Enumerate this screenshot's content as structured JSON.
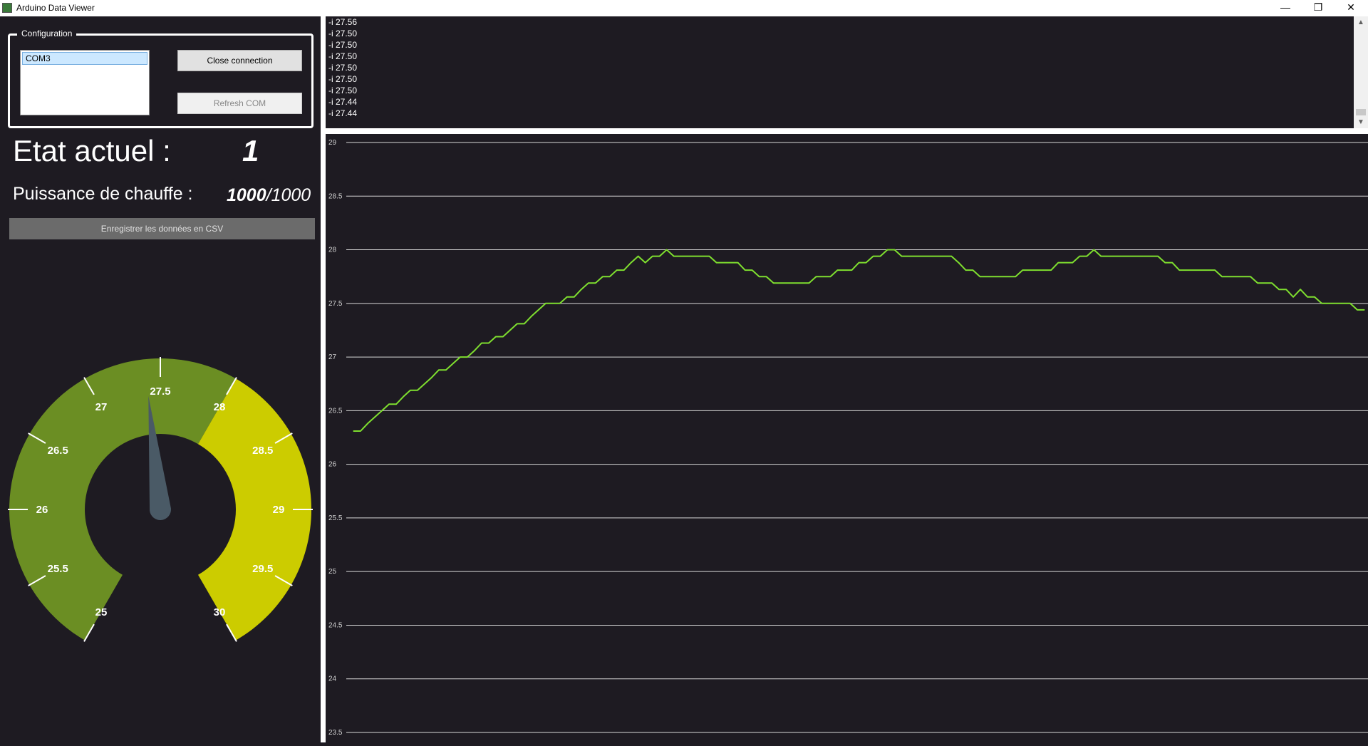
{
  "window": {
    "title": "Arduino Data Viewer",
    "minimize_icon": "minimize-icon",
    "restore_icon": "restore-icon",
    "close_icon": "close-icon"
  },
  "config": {
    "legend": "Configuration",
    "ports": [
      "COM3"
    ],
    "close_label": "Close connection",
    "refresh_label": "Refresh COM"
  },
  "status": {
    "etat_label": "Etat actuel :",
    "etat_value": "1",
    "puissance_label": "Puissance de chauffe :",
    "puissance_value": "1000",
    "puissance_max": "/1000"
  },
  "csv_button": "Enregistrer les données en CSV",
  "gauge": {
    "min": 25,
    "max": 30,
    "value": 27.4,
    "threshold": 28,
    "colors": {
      "low": "#6b8e23",
      "high": "#cccc00",
      "needle": "#4a5a66"
    },
    "labels": [
      "25",
      "25.5",
      "26",
      "26.5",
      "27",
      "27.5",
      "28",
      "28.5",
      "29",
      "29.5",
      "30"
    ]
  },
  "log": [
    "-i 27.56",
    "-i 27.50",
    "-i 27.50",
    "-i 27.50",
    "-i 27.50",
    "-i 27.50",
    "-i 27.50",
    "-i 27.44",
    "-i 27.44"
  ],
  "chart_data": {
    "type": "line",
    "title": "",
    "xlabel": "",
    "ylabel": "",
    "ylim": [
      23.5,
      29
    ],
    "yticks": [
      "29",
      "28.5",
      "28",
      "27.5",
      "27",
      "26.5",
      "26",
      "25.5",
      "25",
      "24.5",
      "24",
      "23.5"
    ],
    "grid": true,
    "color": "#7fdf2f",
    "series": [
      {
        "values": [
          26.31,
          26.31,
          26.38,
          26.44,
          26.5,
          26.56,
          26.56,
          26.63,
          26.69,
          26.69,
          26.75,
          26.81,
          26.88,
          26.88,
          26.94,
          27.0,
          27.0,
          27.06,
          27.13,
          27.13,
          27.19,
          27.19,
          27.25,
          27.31,
          27.31,
          27.38,
          27.44,
          27.5,
          27.5,
          27.5,
          27.56,
          27.56,
          27.63,
          27.69,
          27.69,
          27.75,
          27.75,
          27.81,
          27.81,
          27.88,
          27.94,
          27.88,
          27.94,
          27.94,
          28.0,
          27.94,
          27.94,
          27.94,
          27.94,
          27.94,
          27.94,
          27.88,
          27.88,
          27.88,
          27.88,
          27.81,
          27.81,
          27.75,
          27.75,
          27.69,
          27.69,
          27.69,
          27.69,
          27.69,
          27.69,
          27.75,
          27.75,
          27.75,
          27.81,
          27.81,
          27.81,
          27.88,
          27.88,
          27.94,
          27.94,
          28.0,
          28.0,
          27.94,
          27.94,
          27.94,
          27.94,
          27.94,
          27.94,
          27.94,
          27.94,
          27.88,
          27.81,
          27.81,
          27.75,
          27.75,
          27.75,
          27.75,
          27.75,
          27.75,
          27.81,
          27.81,
          27.81,
          27.81,
          27.81,
          27.88,
          27.88,
          27.88,
          27.94,
          27.94,
          28.0,
          27.94,
          27.94,
          27.94,
          27.94,
          27.94,
          27.94,
          27.94,
          27.94,
          27.94,
          27.88,
          27.88,
          27.81,
          27.81,
          27.81,
          27.81,
          27.81,
          27.81,
          27.75,
          27.75,
          27.75,
          27.75,
          27.75,
          27.69,
          27.69,
          27.69,
          27.63,
          27.63,
          27.56,
          27.63,
          27.56,
          27.56,
          27.5,
          27.5,
          27.5,
          27.5,
          27.5,
          27.44,
          27.44
        ]
      }
    ]
  }
}
